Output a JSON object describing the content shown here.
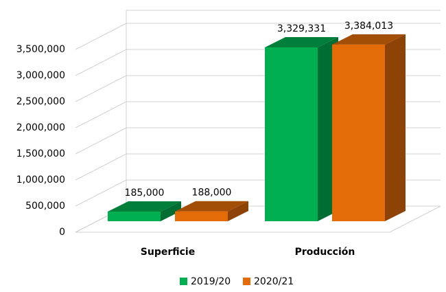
{
  "chart_data": {
    "type": "bar3d",
    "categories": [
      "Superficie",
      "Producción"
    ],
    "series": [
      {
        "name": "2019/20",
        "color": "#00b050",
        "values": [
          185000,
          3329331
        ],
        "value_labels": [
          "185,000",
          "3,329,331"
        ]
      },
      {
        "name": "2020/21",
        "color": "#e36c09",
        "values": [
          188000,
          3384013
        ],
        "value_labels": [
          "188,000",
          "3,384,013"
        ]
      }
    ],
    "ylim": [
      0,
      3500000
    ],
    "yticks": [
      0,
      {
        "value": 500000,
        "label": "500,000"
      },
      {
        "value": 1000000,
        "label": "1,000,000"
      },
      {
        "value": 1500000,
        "label": "1,500,000"
      },
      {
        "value": 2000000,
        "label": "2,000,000"
      },
      {
        "value": 2500000,
        "label": "2,500,000"
      },
      {
        "value": 3000000,
        "label": "3,000,000"
      },
      {
        "value": 3500000,
        "label": "3,500,000"
      }
    ],
    "grid": true,
    "legend": "bottom"
  }
}
